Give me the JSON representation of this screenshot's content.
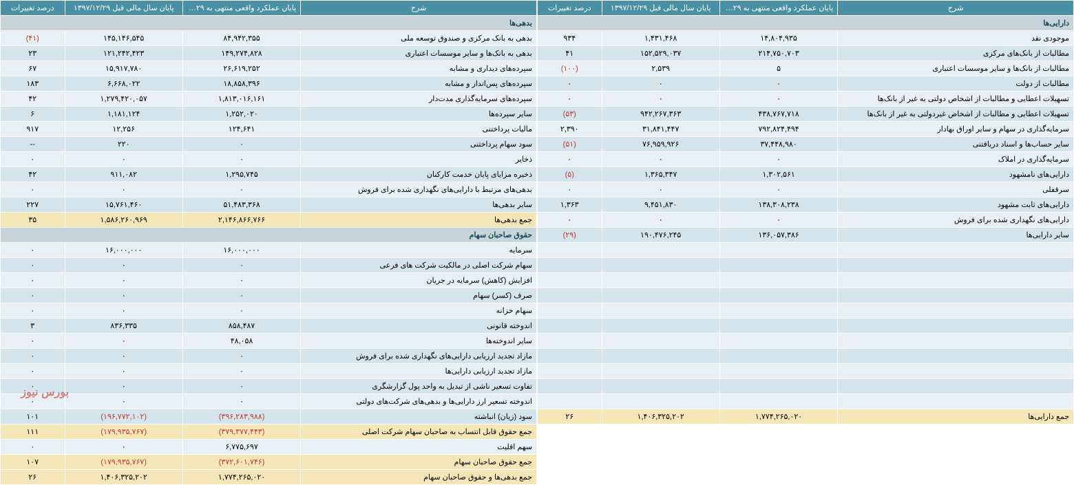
{
  "colors": {
    "header_bg": "#4a90a4",
    "header_fg": "#ffffff",
    "section_bg": "#c7d4da",
    "section_fg": "#1a4a5c",
    "row_a": "#e8f0f5",
    "row_b": "#d4e4ed",
    "total_bg": "#f5e6b8",
    "neg": "#c0392b",
    "border": "#ffffff"
  },
  "columns": {
    "c1": "شرح",
    "c2": "پایان عملکرد واقعی منتهی به ۱۳۹۸/۱۲/۲۹",
    "c3": "پایان سال مالی قبل ۱۳۹۷/۱۲/۲۹",
    "c4": "درصد تغییرات"
  },
  "assets": {
    "section": "دارایی‌ها",
    "rows": [
      {
        "t": "موجودی نقد",
        "a": "۱۴,۸۰۴,۹۳۵",
        "b": "۱,۴۳۱,۴۶۸",
        "p": "۹۳۴"
      },
      {
        "t": "مطالبات از بانک‌های مرکزی",
        "a": "۲۱۴,۷۵۰,۷۰۳",
        "b": "۱۵۲,۵۲۹,۰۳۷",
        "p": "۴۱"
      },
      {
        "t": "مطالبات از بانک‌ها و سایر موسسات اعتباری",
        "a": "۵",
        "b": "۲,۵۳۹",
        "p": "(۱۰۰)",
        "pn": true
      },
      {
        "t": "مطالبات از دولت",
        "a": "۰",
        "b": "۰",
        "p": "۰"
      },
      {
        "t": "تسهیلات اعطایی و مطالبات از اشخاص دولتی به غیر از بانک‌ها",
        "a": "۰",
        "b": "۰",
        "p": "۰"
      },
      {
        "t": "تسهیلات اعطایی و مطالبات از اشخاص غیردولتی به غیر از بانک‌ها",
        "a": "۴۳۸,۷۶۷,۷۱۸",
        "b": "۹۴۲,۲۶۷,۳۶۳",
        "p": "(۵۳)",
        "pn": true
      },
      {
        "t": "سرمایه‌گذاری در سهام و سایر اوراق بهادار",
        "a": "۷۹۲,۸۲۴,۴۹۴",
        "b": "۳۱,۸۴۱,۴۴۷",
        "p": "۲,۳۹۰"
      },
      {
        "t": "سایر حساب‌ها و اسناد دریافتنی",
        "a": "۳۷,۴۴۸,۹۸۰",
        "b": "۷۶,۹۵۹,۹۲۶",
        "p": "(۵۱)",
        "pn": true
      },
      {
        "t": "سرمایه‌گذاری در املاک",
        "a": "۰",
        "b": "۰",
        "p": "۰"
      },
      {
        "t": "دارایی‌های نامشهود",
        "a": "۱,۳۰۲,۵۶۱",
        "b": "۱,۳۶۵,۳۴۷",
        "p": "(۵)",
        "pn": true
      },
      {
        "t": "سرقفلی",
        "a": "۰",
        "b": "۰",
        "p": "۰"
      },
      {
        "t": "دارایی‌های ثابت مشهود",
        "a": "۱۳۸,۳۰۸,۲۳۸",
        "b": "۹,۴۵۱,۸۳۰",
        "p": "۱,۳۶۳"
      },
      {
        "t": "دارایی‌های نگهداری شده برای فروش",
        "a": "۰",
        "b": "۰",
        "p": "۰"
      },
      {
        "t": "سایر دارایی‌ها",
        "a": "۱۳۶,۰۵۷,۳۸۶",
        "b": "۱۹۰,۴۷۶,۲۴۵",
        "p": "(۲۹)",
        "pn": true
      },
      {
        "t": "",
        "a": "",
        "b": "",
        "p": ""
      },
      {
        "t": "",
        "a": "",
        "b": "",
        "p": ""
      },
      {
        "t": "",
        "a": "",
        "b": "",
        "p": ""
      },
      {
        "t": "",
        "a": "",
        "b": "",
        "p": ""
      },
      {
        "t": "",
        "a": "",
        "b": "",
        "p": ""
      },
      {
        "t": "",
        "a": "",
        "b": "",
        "p": ""
      },
      {
        "t": "",
        "a": "",
        "b": "",
        "p": ""
      },
      {
        "t": "",
        "a": "",
        "b": "",
        "p": ""
      },
      {
        "t": "",
        "a": "",
        "b": "",
        "p": ""
      },
      {
        "t": "",
        "a": "",
        "b": "",
        "p": ""
      },
      {
        "t": "",
        "a": "",
        "b": "",
        "p": ""
      }
    ],
    "totals": [
      {
        "t": "جمع دارایی‌ها",
        "a": "۱,۷۷۴,۲۶۵,۰۲۰",
        "b": "۱,۴۰۶,۳۲۵,۲۰۲",
        "p": "۲۶"
      }
    ]
  },
  "liab": {
    "section1": "بدهی‌ها",
    "section2": "حقوق صاحبان سهام",
    "rows1": [
      {
        "t": "بدهی به بانک مرکزی و صندوق توسعه ملی",
        "a": "۸۴,۹۴۲,۳۵۵",
        "b": "۱۴۵,۱۴۶,۵۴۵",
        "p": "(۴۱)",
        "pn": true
      },
      {
        "t": "بدهی به بانک‌ها و سایر موسسات اعتباری",
        "a": "۱۴۹,۲۷۴,۸۲۸",
        "b": "۱۲۱,۲۴۲,۴۲۳",
        "p": "۲۳"
      },
      {
        "t": "سپرده‌های دیداری و مشابه",
        "a": "۲۶,۶۱۹,۲۵۲",
        "b": "۱۵,۹۱۷,۷۸۰",
        "p": "۶۷"
      },
      {
        "t": "سپرده‌های پس‌انداز و مشابه",
        "a": "۱۸,۸۵۸,۳۹۶",
        "b": "۶,۶۶۸,۰۲۲",
        "p": "۱۸۳"
      },
      {
        "t": "سپرده‌های سرمایه‌گذاری مدت‌دار",
        "a": "۱,۸۱۳,۰۱۶,۱۶۱",
        "b": "۱,۲۷۹,۴۲۰,۰۵۷",
        "p": "۴۲"
      },
      {
        "t": "سایر سپرده‌ها",
        "a": "۱,۲۵۲,۰۲۰",
        "b": "۱,۱۸۱,۱۲۴",
        "p": "۶"
      },
      {
        "t": "مالیات پرداختنی",
        "a": "۱۲۴,۶۴۱",
        "b": "۱۲,۲۵۶",
        "p": "۹۱۷"
      },
      {
        "t": "سود سهام پرداختنی",
        "a": "۰",
        "b": "۲۲۰",
        "p": "--"
      },
      {
        "t": "ذخایر",
        "a": "۰",
        "b": "۰",
        "p": "۰"
      },
      {
        "t": "ذخیره مزایای پایان خدمت کارکنان",
        "a": "۱,۲۹۵,۷۴۵",
        "b": "۹۱۱,۰۸۲",
        "p": "۴۲"
      },
      {
        "t": "بدهی‌های مرتبط با دارایی‌های نگهداری شده برای فروش",
        "a": "۰",
        "b": "۰",
        "p": "۰"
      },
      {
        "t": "سایر بدهی‌ها",
        "a": "۵۱,۴۸۳,۳۶۸",
        "b": "۱۵,۷۶۱,۴۶۰",
        "p": "۲۲۷"
      }
    ],
    "total1": {
      "t": "جمع بدهی‌ها",
      "a": "۲,۱۴۶,۸۶۶,۷۶۶",
      "b": "۱,۵۸۶,۲۶۰,۹۶۹",
      "p": "۳۵"
    },
    "rows2": [
      {
        "t": "سرمایه",
        "a": "۱۶,۰۰۰,۰۰۰",
        "b": "۱۶,۰۰۰,۰۰۰",
        "p": "۰"
      },
      {
        "t": "سهام شرکت اصلی در مالکیت شرکت های فرعی",
        "a": "۰",
        "b": "۰",
        "p": "۰"
      },
      {
        "t": "افزایش (کاهش) سرمایه در جریان",
        "a": "۰",
        "b": "۰",
        "p": "۰"
      },
      {
        "t": "صرف (کسر) سهام",
        "a": "۰",
        "b": "۰",
        "p": "۰"
      },
      {
        "t": "سهام خزانه",
        "a": "۰",
        "b": "۰",
        "p": "۰"
      },
      {
        "t": "اندوخته قانونی",
        "a": "۸۵۸,۴۸۷",
        "b": "۸۳۶,۳۳۵",
        "p": "۳"
      },
      {
        "t": "سایر اندوخته‌ها",
        "a": "۴۸,۰۵۸",
        "b": "۰",
        "p": "۰"
      },
      {
        "t": "مازاد تجدید ارزیابی دارایی‌های نگهداری شده برای فروش",
        "a": "۰",
        "b": "۰",
        "p": "۰"
      },
      {
        "t": "مازاد تجدید ارزیابی دارایی‌ها",
        "a": "۰",
        "b": "۰",
        "p": "۰"
      },
      {
        "t": "تفاوت تسعیر ناشی از تبدیل به واحد پول گزارشگری",
        "a": "۰",
        "b": "۰",
        "p": "۰"
      },
      {
        "t": "اندوخته تسعیر ارز دارایی‌ها و بدهی‌های شرکت‌های دولتی",
        "a": "۰",
        "b": "۰",
        "p": "۰"
      },
      {
        "t": "سود (زیان) انباشته",
        "a": "(۳۹۶,۲۸۳,۹۸۸)",
        "an": true,
        "b": "(۱۹۶,۷۷۲,۱۰۲)",
        "bn": true,
        "p": "۱۰۱"
      }
    ],
    "total2": {
      "t": "جمع حقوق قابل انتساب به صاحبان سهام شرکت اصلی",
      "a": "(۳۷۹,۳۷۷,۴۴۳)",
      "an": true,
      "b": "(۱۷۹,۹۳۵,۷۶۷)",
      "bn": true,
      "p": "۱۱۱"
    },
    "row_minority": {
      "t": "سهم اقلیت",
      "a": "۶,۷۷۵,۶۹۷",
      "b": "۰",
      "p": "۰"
    },
    "total3": {
      "t": "جمع حقوق صاحبان سهام",
      "a": "(۳۷۲,۶۰۱,۷۴۶)",
      "an": true,
      "b": "(۱۷۹,۹۳۵,۷۶۷)",
      "bn": true,
      "p": "۱۰۷"
    },
    "total4": {
      "t": "جمع بدهی‌ها و حقوق صاحبان سهام",
      "a": "۱,۷۷۴,۲۶۵,۰۲۰",
      "b": "۱,۴۰۶,۳۲۵,۲۰۲",
      "p": "۲۶"
    }
  },
  "watermark": "بورس نیوز"
}
